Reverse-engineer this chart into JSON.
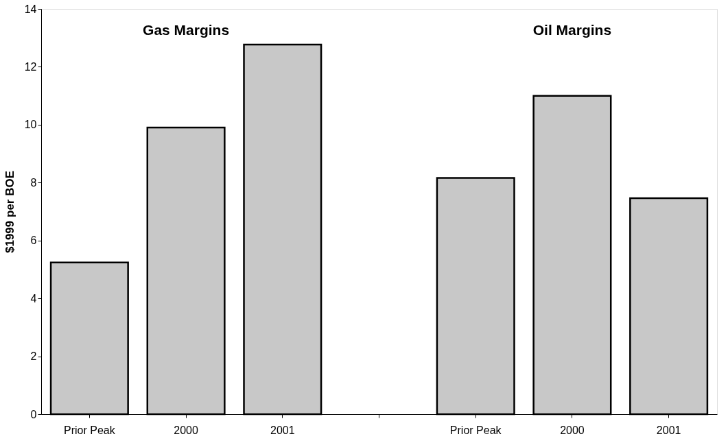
{
  "chart_data": {
    "type": "bar",
    "categories": [
      "Prior Peak",
      "2000",
      "2001",
      null,
      "Prior Peak",
      "2000",
      "2001"
    ],
    "values": [
      5.24,
      9.9,
      12.77,
      null,
      8.16,
      11.0,
      7.46
    ],
    "color": "#c8c8c8",
    "ylabel": "$1999 per BOE",
    "ylim": [
      0,
      14
    ],
    "yticks": [
      0,
      2,
      4,
      6,
      8,
      10,
      12,
      14
    ],
    "annotations": [
      "Gas Margins",
      "Oil Margins"
    ],
    "grid": false
  }
}
